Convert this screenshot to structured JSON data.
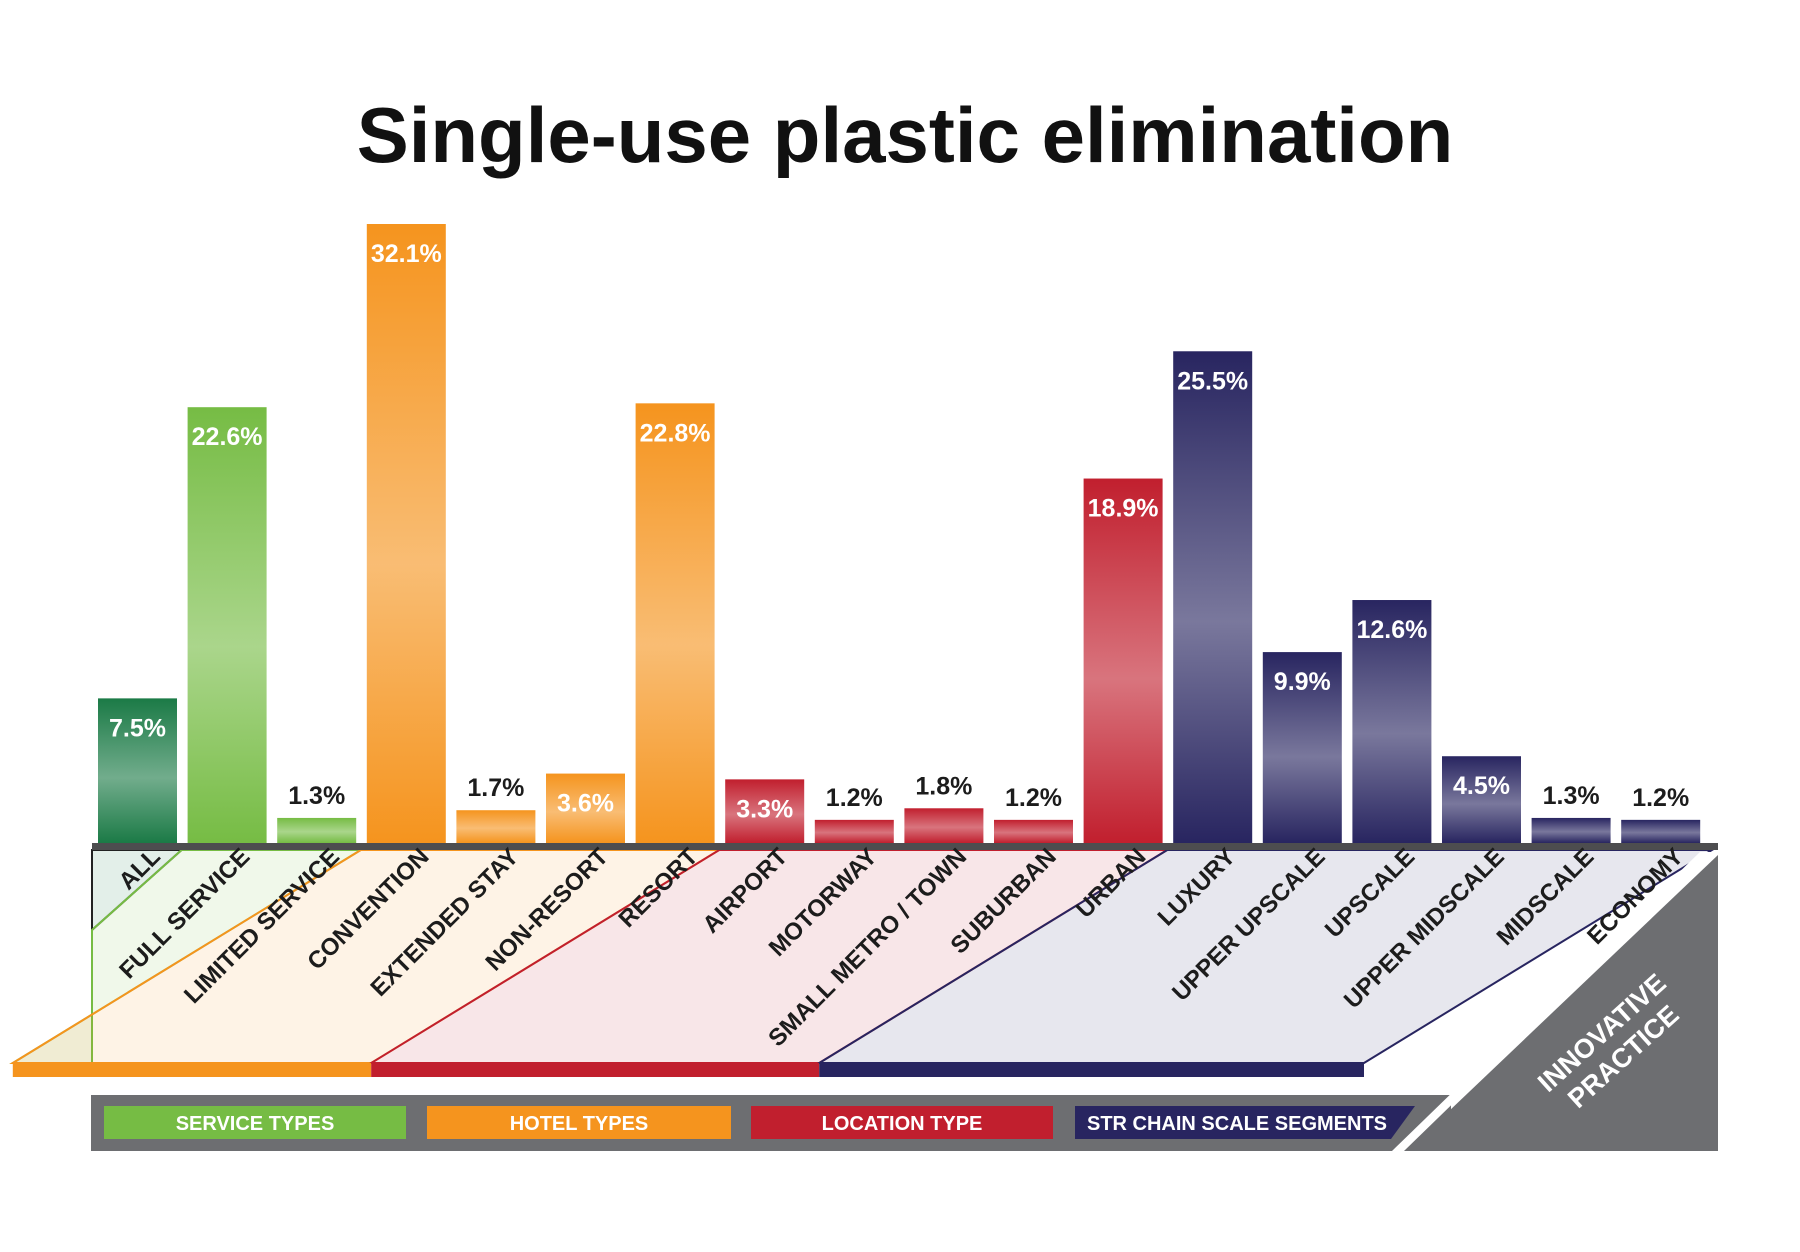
{
  "chart_data": {
    "type": "bar",
    "title": "Single-use plastic elimination",
    "value_suffix": "%",
    "ylim": [
      0,
      35
    ],
    "grid": false,
    "categories": [
      "ALL",
      "FULL SERVICE",
      "LIMITED SERVICE",
      "CONVENTION",
      "EXTENDED STAY",
      "NON-RESORT",
      "RESORT",
      "AIRPORT",
      "MOTORWAY",
      "SMALL METRO / TOWN",
      "SUBURBAN",
      "URBAN",
      "LUXURY",
      "UPPER  UPSCALE",
      "UPSCALE",
      "UPPER  MIDSCALE",
      "MIDSCALE",
      "ECONOMY"
    ],
    "values": [
      7.5,
      22.6,
      1.3,
      32.1,
      1.7,
      3.6,
      22.8,
      3.3,
      1.2,
      1.8,
      1.2,
      18.9,
      25.5,
      9.9,
      12.6,
      4.5,
      1.3,
      1.2
    ],
    "labels": [
      "7.5%",
      "22.6%",
      "1.3%",
      "32.1%",
      "1.7%",
      "3.6%",
      "22.8%",
      "3.3%",
      "1.2%",
      "1.8%",
      "1.2%",
      "18.9%",
      "25.5%",
      "9.9%",
      "12.6%",
      "4.5%",
      "1.3%",
      "1.2%"
    ],
    "groups": [
      {
        "name": "SERVICE TYPES",
        "color": "#76bc44",
        "members": [
          "FULL SERVICE",
          "LIMITED SERVICE"
        ]
      },
      {
        "name": "HOTEL TYPES",
        "color": "#f5941e",
        "members": [
          "CONVENTION",
          "EXTENDED STAY",
          "NON-RESORT",
          "RESORT"
        ]
      },
      {
        "name": "LOCATION TYPE",
        "color": "#c11f2e",
        "members": [
          "AIRPORT",
          "MOTORWAY",
          "SMALL METRO / TOWN",
          "SUBURBAN",
          "URBAN"
        ]
      },
      {
        "name": "STR CHAIN SCALE SEGMENTS",
        "color": "#282560",
        "members": [
          "LUXURY",
          "UPPER  UPSCALE",
          "UPSCALE",
          "UPPER  MIDSCALE",
          "MIDSCALE",
          "ECONOMY"
        ]
      }
    ],
    "all_color": "#1b7a46",
    "legend_position": "bottom"
  },
  "badge": {
    "line1": "INNOVATIVE",
    "line2": "PRACTICE",
    "color": "#6d6e71"
  }
}
